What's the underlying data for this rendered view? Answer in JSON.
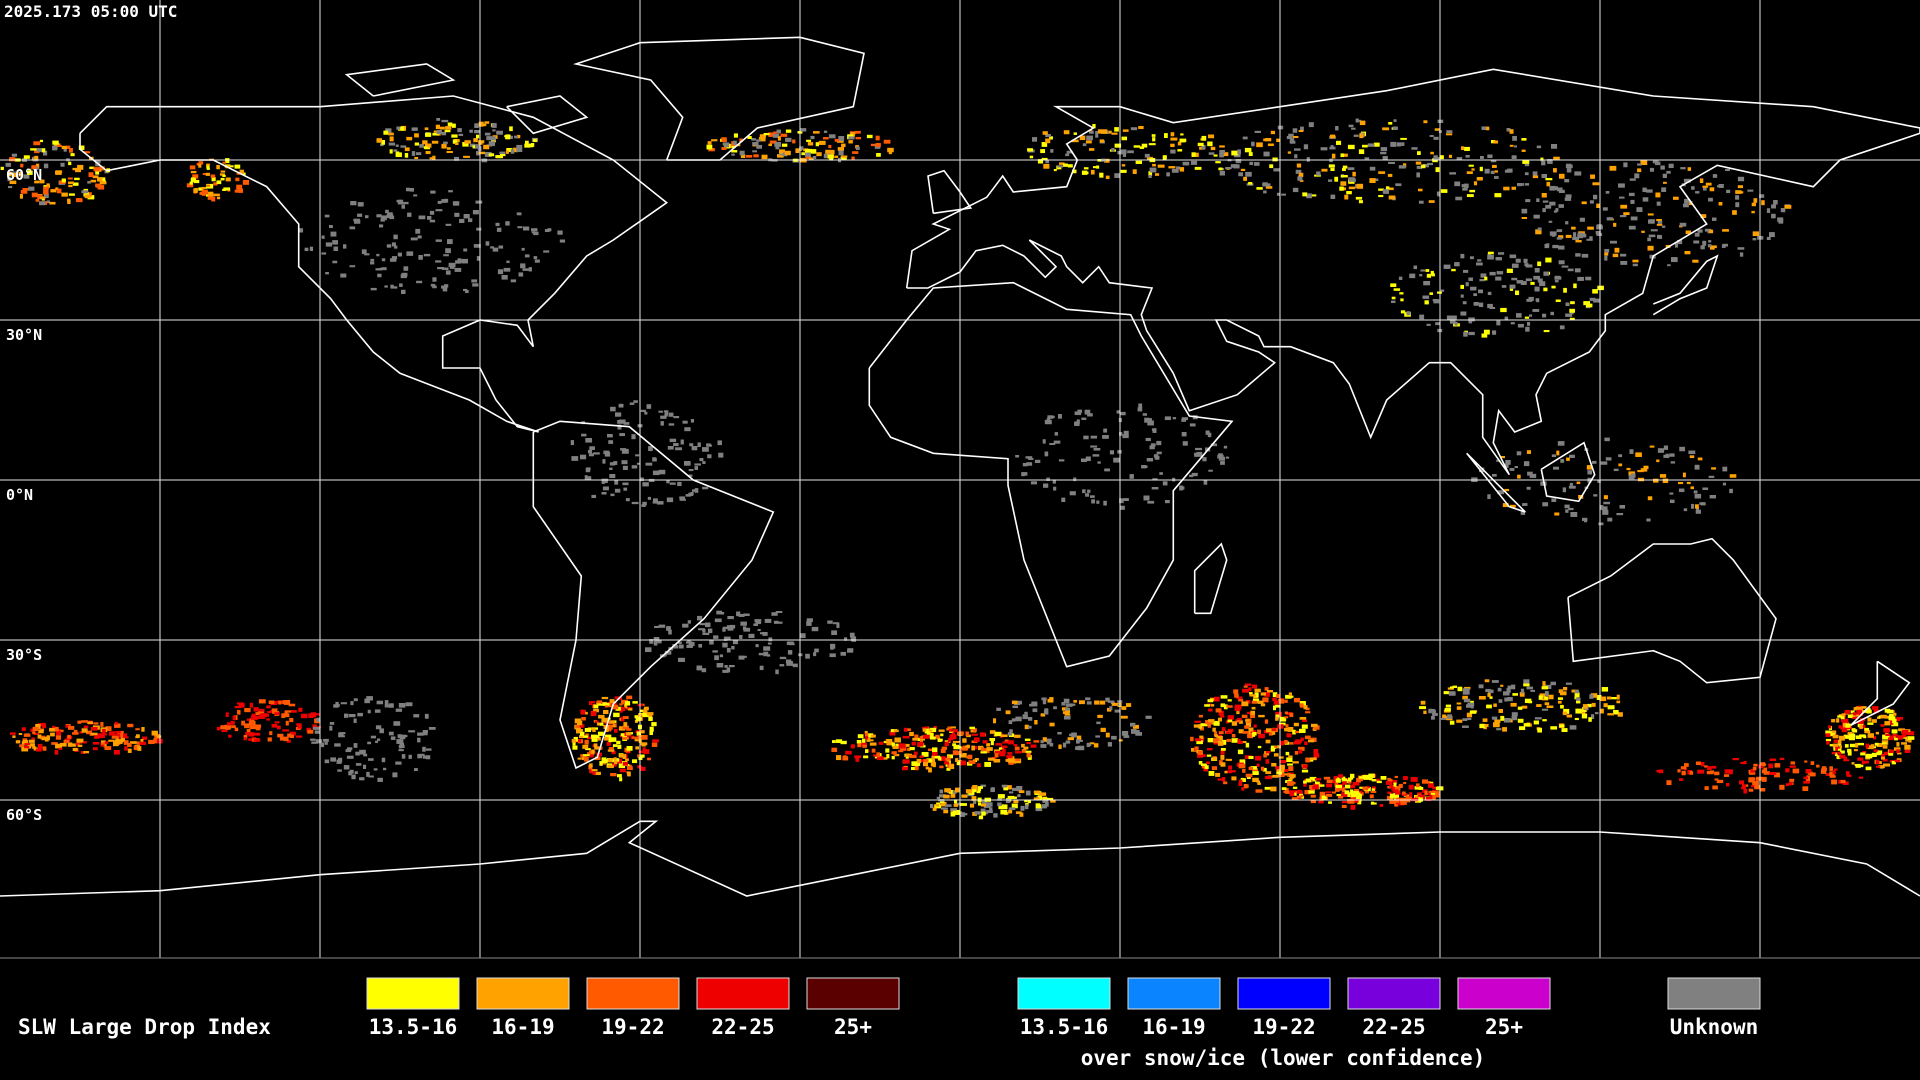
{
  "header": {
    "timestamp": "2025.173 05:00 UTC"
  },
  "map": {
    "latitude_labels": [
      "60°N",
      "30°N",
      "0°N",
      "30°S",
      "60°S"
    ]
  },
  "legend": {
    "title": "SLW Large Drop Index",
    "groups": [
      {
        "items": [
          {
            "label": "13.5-16",
            "color": "#ffff00"
          },
          {
            "label": "16-19",
            "color": "#ffa200"
          },
          {
            "label": "19-22",
            "color": "#ff5a00"
          },
          {
            "label": "22-25",
            "color": "#ee0000"
          },
          {
            "label": "25+",
            "color": "#5a0000"
          }
        ]
      },
      {
        "items": [
          {
            "label": "13.5-16",
            "color": "#00ffff"
          },
          {
            "label": "16-19",
            "color": "#0a84ff"
          },
          {
            "label": "19-22",
            "color": "#0000ff"
          },
          {
            "label": "22-25",
            "color": "#7700dd"
          },
          {
            "label": "25+",
            "color": "#cc00cc"
          }
        ],
        "caption": "over snow/ice (lower confidence)"
      },
      {
        "items": [
          {
            "label": "Unknown",
            "color": "#808080"
          }
        ]
      }
    ]
  }
}
